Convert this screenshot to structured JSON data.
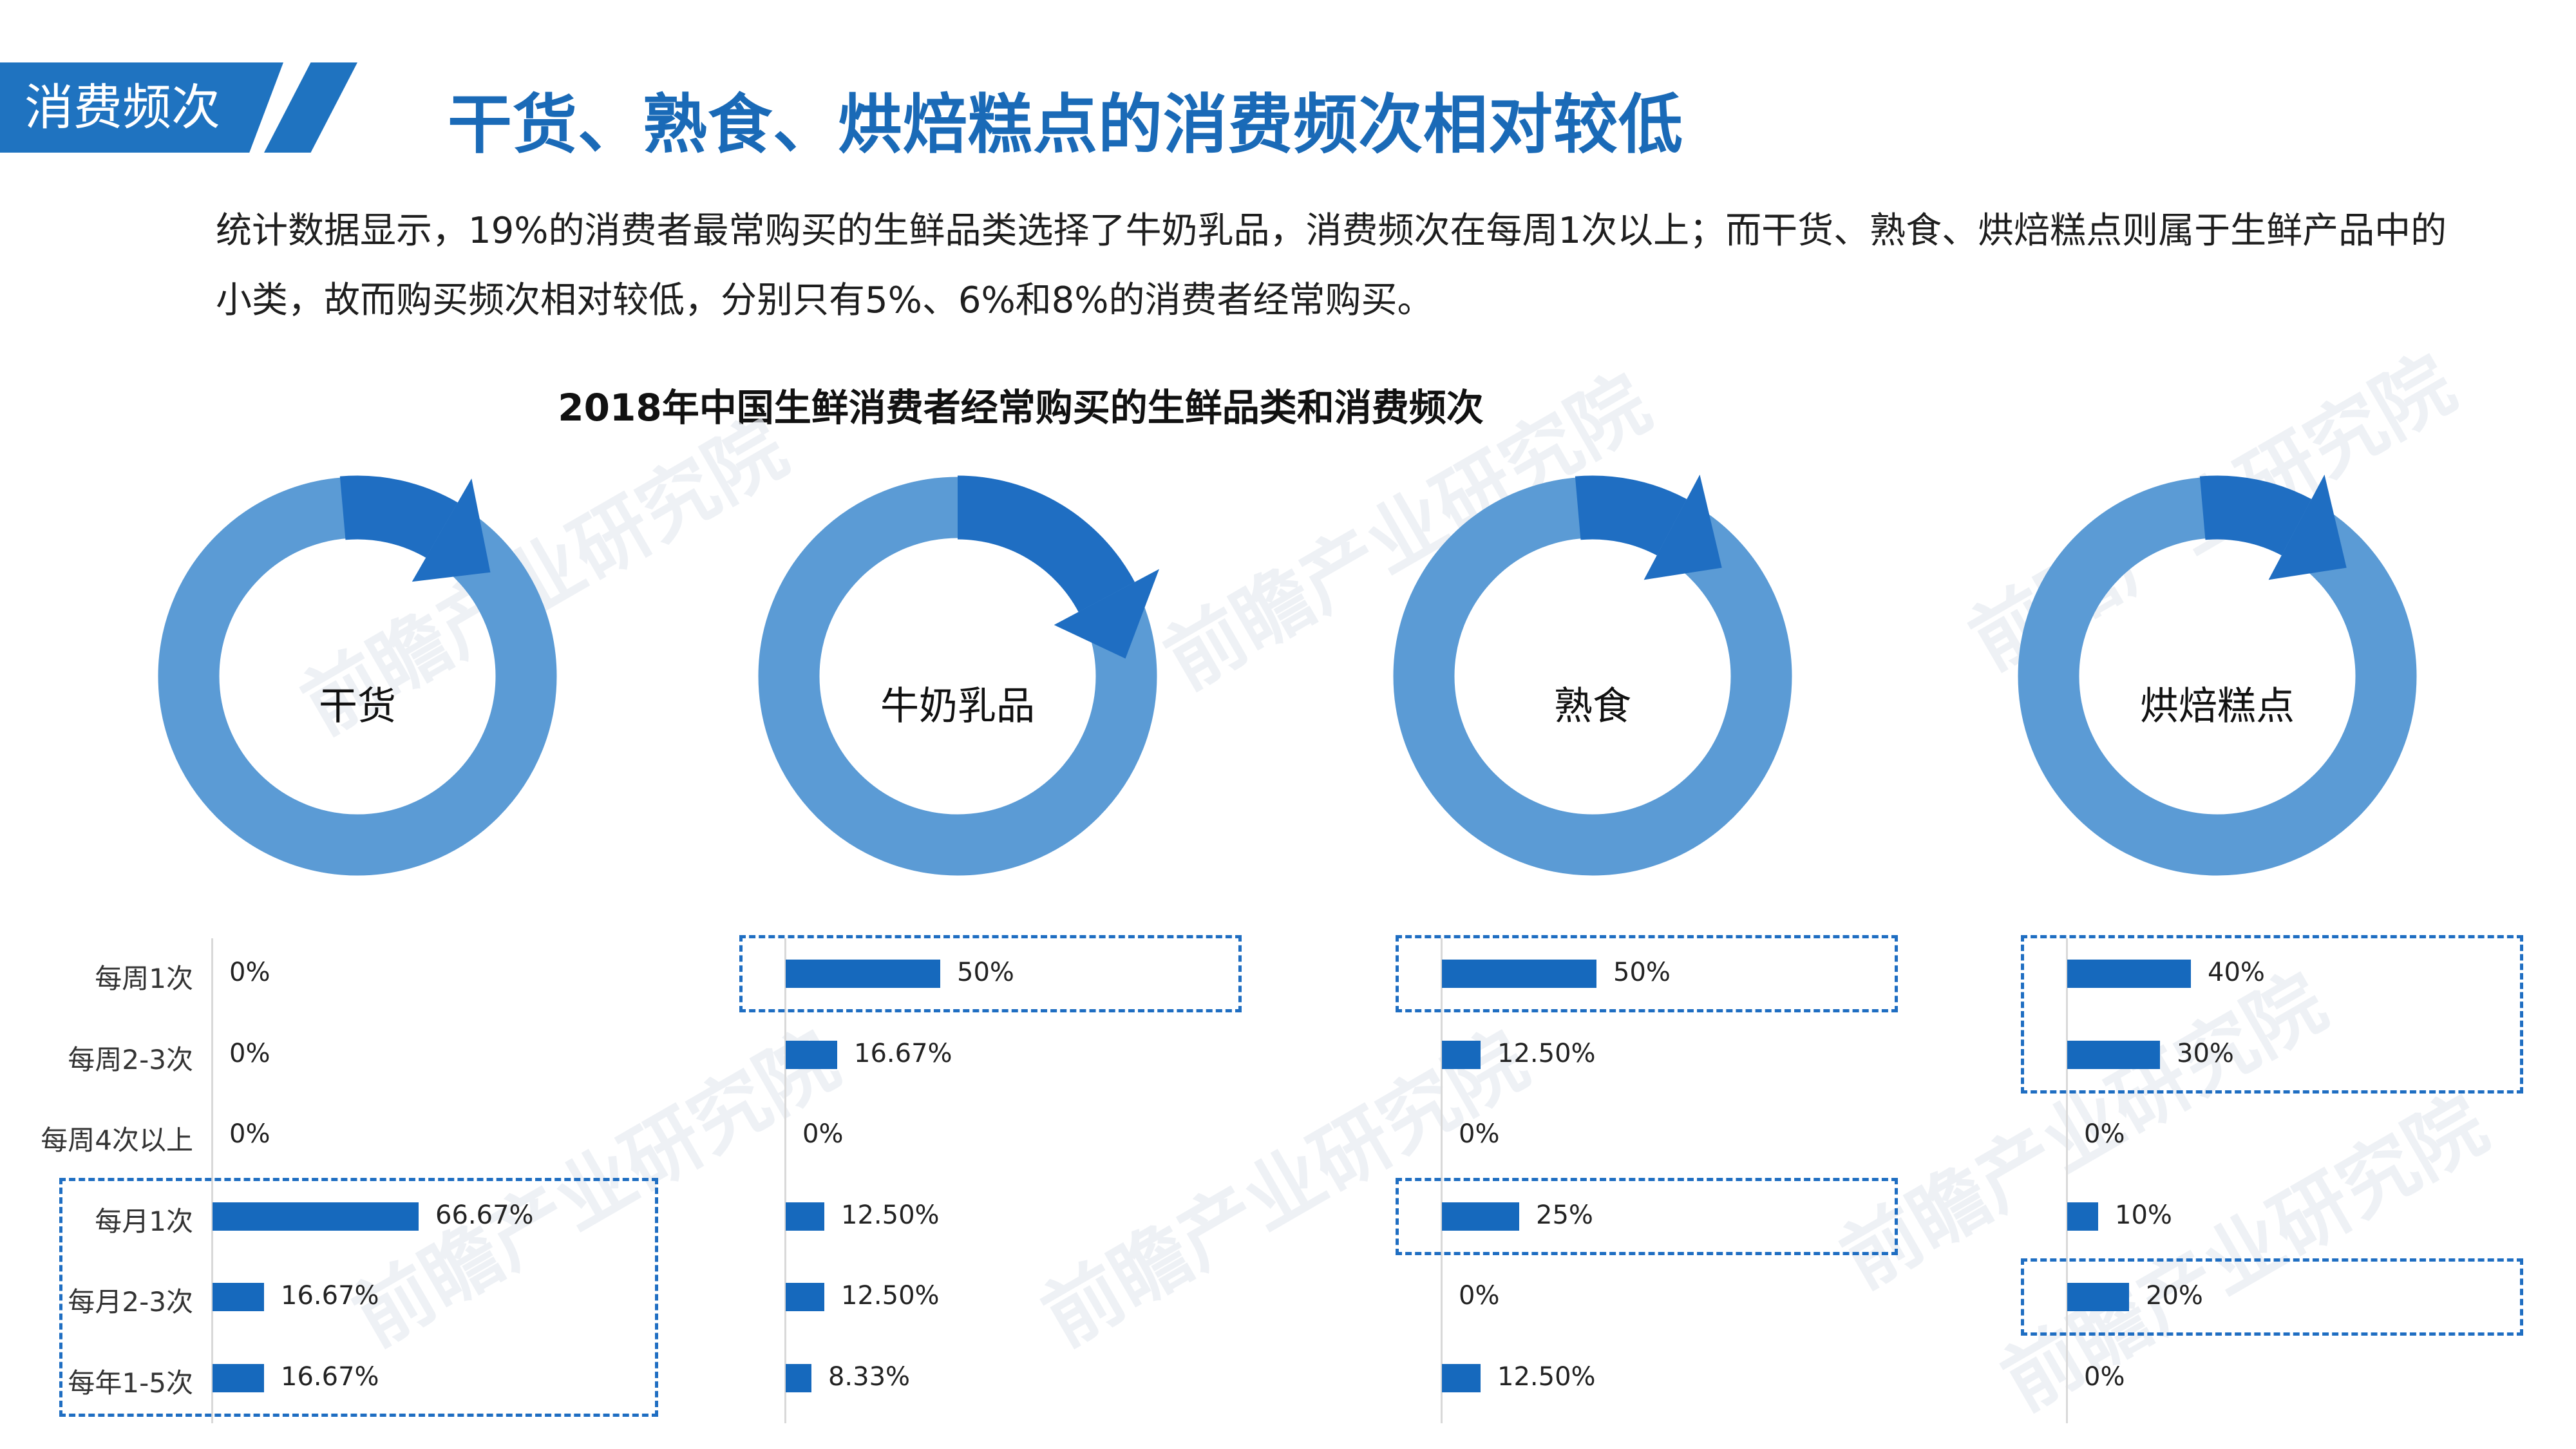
{
  "header": {
    "tag": "消费频次",
    "title": "干货、熟食、烘焙糕点的消费频次相对较低"
  },
  "description": "统计数据显示，19%的消费者最常购买的生鲜品类选择了牛奶乳品，消费频次在每周1次以上；而干货、熟食、烘焙糕点则属于生鲜产品中的小类，故而购买频次相对较低，分别只有5%、6%和8%的消费者经常购买。",
  "watermark": "前瞻产业研究院",
  "colors": {
    "accent": "#1f73c0",
    "ring": "#5b9bd5",
    "arrow": "#1f6ec2",
    "bar": "#1669bd"
  },
  "chart_data": {
    "type": "bar",
    "title": "2018年中国生鲜消费者经常购买的生鲜品类和消费频次",
    "categories": [
      "每周1次",
      "每周2-3次",
      "每周4次以上",
      "每月1次",
      "每月2-3次",
      "每年1-5次"
    ],
    "series": [
      {
        "name": "干货",
        "values": [
          0,
          0,
          0,
          66.67,
          16.67,
          16.67
        ],
        "labels": [
          "0%",
          "0%",
          "0%",
          "66.67%",
          "16.67%",
          "16.67%"
        ],
        "highlight": [
          [
            3,
            5
          ]
        ]
      },
      {
        "name": "牛奶乳品",
        "values": [
          50,
          16.67,
          0,
          12.5,
          12.5,
          8.33
        ],
        "labels": [
          "50%",
          "16.67%",
          "0%",
          "12.50%",
          "12.50%",
          "8.33%"
        ],
        "highlight": [
          [
            0,
            0
          ]
        ]
      },
      {
        "name": "熟食",
        "values": [
          50,
          12.5,
          0,
          25,
          0,
          12.5
        ],
        "labels": [
          "50%",
          "12.50%",
          "0%",
          "25%",
          "0%",
          "12.50%"
        ],
        "highlight": [
          [
            0,
            0
          ],
          [
            3,
            3
          ]
        ]
      },
      {
        "name": "烘焙糕点",
        "values": [
          40,
          30,
          0,
          10,
          20,
          0
        ],
        "labels": [
          "40%",
          "30%",
          "0%",
          "10%",
          "20%",
          "0%"
        ],
        "highlight": [
          [
            0,
            1
          ],
          [
            4,
            4
          ]
        ]
      }
    ],
    "xlim": [
      0,
      70
    ],
    "grid": false,
    "legend": "none"
  }
}
